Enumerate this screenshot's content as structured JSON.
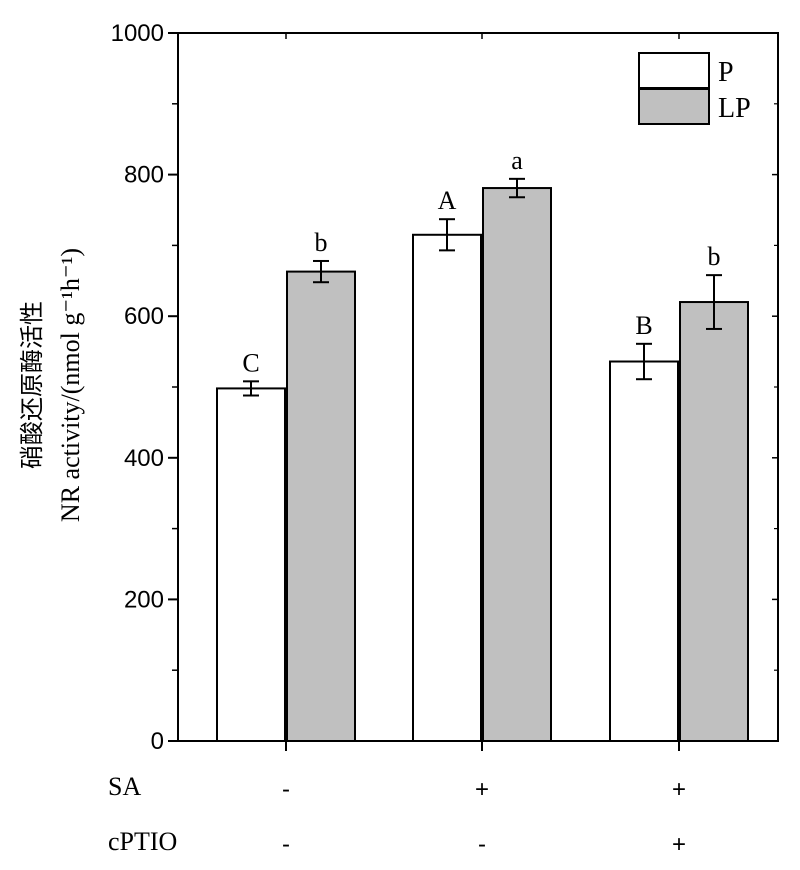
{
  "chart_data": {
    "type": "bar",
    "ylabel_cn": "硝酸还原酶活性",
    "ylabel": "NR activity/(nmol g⁻¹h⁻¹)",
    "ylim": [
      0,
      1000
    ],
    "yticks": [
      "0",
      "200",
      "400",
      "600",
      "800",
      "1000"
    ],
    "legend_position": "top-right",
    "series": [
      {
        "name": "P",
        "color": "#ffffff",
        "values": [
          498,
          715,
          536
        ],
        "errors": [
          10,
          22,
          25
        ],
        "letters": [
          "C",
          "A",
          "B"
        ]
      },
      {
        "name": "LP",
        "color": "#c0c0c0",
        "values": [
          663,
          781,
          620
        ],
        "errors": [
          15,
          13,
          38
        ],
        "letters": [
          "b",
          "a",
          "b"
        ]
      }
    ],
    "groups": [
      {
        "SA": "-",
        "cPTIO": "-"
      },
      {
        "SA": "+",
        "cPTIO": "-"
      },
      {
        "SA": "+",
        "cPTIO": "+"
      }
    ],
    "row_labels": [
      "SA",
      "cPTIO"
    ]
  }
}
